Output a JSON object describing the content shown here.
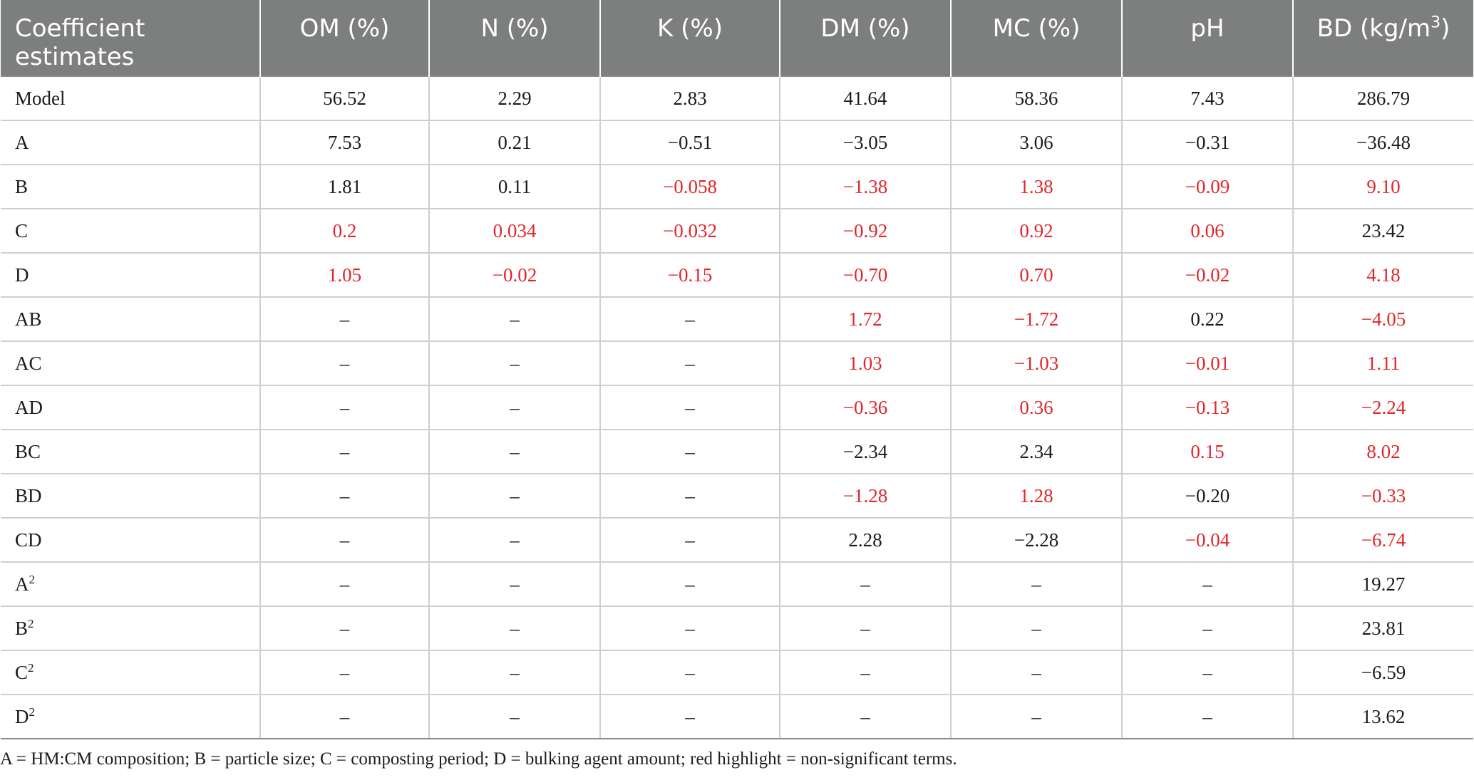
{
  "table": {
    "headers": [
      "Coefficient estimates",
      "OM (%)",
      "N (%)",
      "K (%)",
      "DM (%)",
      "MC (%)",
      "pH",
      "BD (kg/m3)"
    ],
    "rows": [
      {
        "term": "Model",
        "sup": "",
        "values": [
          "56.52",
          "2.29",
          "2.83",
          "41.64",
          "58.36",
          "7.43",
          "286.79"
        ],
        "red": [
          false,
          false,
          false,
          false,
          false,
          false,
          false
        ]
      },
      {
        "term": "A",
        "sup": "",
        "values": [
          "7.53",
          "0.21",
          "−0.51",
          "−3.05",
          "3.06",
          "−0.31",
          "−36.48"
        ],
        "red": [
          false,
          false,
          false,
          false,
          false,
          false,
          false
        ]
      },
      {
        "term": "B",
        "sup": "",
        "values": [
          "1.81",
          "0.11",
          "−0.058",
          "−1.38",
          "1.38",
          "−0.09",
          "9.10"
        ],
        "red": [
          false,
          false,
          true,
          true,
          true,
          true,
          true
        ]
      },
      {
        "term": "C",
        "sup": "",
        "values": [
          "0.2",
          "0.034",
          "−0.032",
          "−0.92",
          "0.92",
          "0.06",
          "23.42"
        ],
        "red": [
          true,
          true,
          true,
          true,
          true,
          true,
          false
        ]
      },
      {
        "term": "D",
        "sup": "",
        "values": [
          "1.05",
          "−0.02",
          "−0.15",
          "−0.70",
          "0.70",
          "−0.02",
          "4.18"
        ],
        "red": [
          true,
          true,
          true,
          true,
          true,
          true,
          true
        ]
      },
      {
        "term": "AB",
        "sup": "",
        "values": [
          "–",
          "–",
          "–",
          "1.72",
          "−1.72",
          "0.22",
          "−4.05"
        ],
        "red": [
          false,
          false,
          false,
          true,
          true,
          false,
          true
        ]
      },
      {
        "term": "AC",
        "sup": "",
        "values": [
          "–",
          "–",
          "–",
          "1.03",
          "−1.03",
          "−0.01",
          "1.11"
        ],
        "red": [
          false,
          false,
          false,
          true,
          true,
          true,
          true
        ]
      },
      {
        "term": "AD",
        "sup": "",
        "values": [
          "–",
          "–",
          "–",
          "−0.36",
          "0.36",
          "−0.13",
          "−2.24"
        ],
        "red": [
          false,
          false,
          false,
          true,
          true,
          true,
          true
        ]
      },
      {
        "term": "BC",
        "sup": "",
        "values": [
          "–",
          "–",
          "–",
          "−2.34",
          "2.34",
          "0.15",
          "8.02"
        ],
        "red": [
          false,
          false,
          false,
          false,
          false,
          true,
          true
        ]
      },
      {
        "term": "BD",
        "sup": "",
        "values": [
          "–",
          "–",
          "–",
          "−1.28",
          "1.28",
          "−0.20",
          "−0.33"
        ],
        "red": [
          false,
          false,
          false,
          true,
          true,
          false,
          true
        ]
      },
      {
        "term": "CD",
        "sup": "",
        "values": [
          "–",
          "–",
          "–",
          "2.28",
          "−2.28",
          "−0.04",
          "−6.74"
        ],
        "red": [
          false,
          false,
          false,
          false,
          false,
          true,
          true
        ]
      },
      {
        "term": "A",
        "sup": "2",
        "values": [
          "–",
          "–",
          "–",
          "–",
          "–",
          "–",
          "19.27"
        ],
        "red": [
          false,
          false,
          false,
          false,
          false,
          false,
          false
        ]
      },
      {
        "term": "B",
        "sup": "2",
        "values": [
          "–",
          "–",
          "–",
          "–",
          "–",
          "–",
          "23.81"
        ],
        "red": [
          false,
          false,
          false,
          false,
          false,
          false,
          false
        ]
      },
      {
        "term": "C",
        "sup": "2",
        "values": [
          "–",
          "–",
          "–",
          "–",
          "–",
          "–",
          "−6.59"
        ],
        "red": [
          false,
          false,
          false,
          false,
          false,
          false,
          false
        ]
      },
      {
        "term": "D",
        "sup": "2",
        "values": [
          "–",
          "–",
          "–",
          "–",
          "–",
          "–",
          "13.62"
        ],
        "red": [
          false,
          false,
          false,
          false,
          false,
          false,
          false
        ]
      }
    ]
  },
  "footnote": "A = HM:CM composition; B = particle size; C = composting period; D = bulking agent amount; red highlight = non-significant terms.",
  "colors": {
    "header_bg": "#7d7f7e",
    "header_text": "#ffffff",
    "non_significant": "#e0262a",
    "text": "#1b1b1b"
  }
}
